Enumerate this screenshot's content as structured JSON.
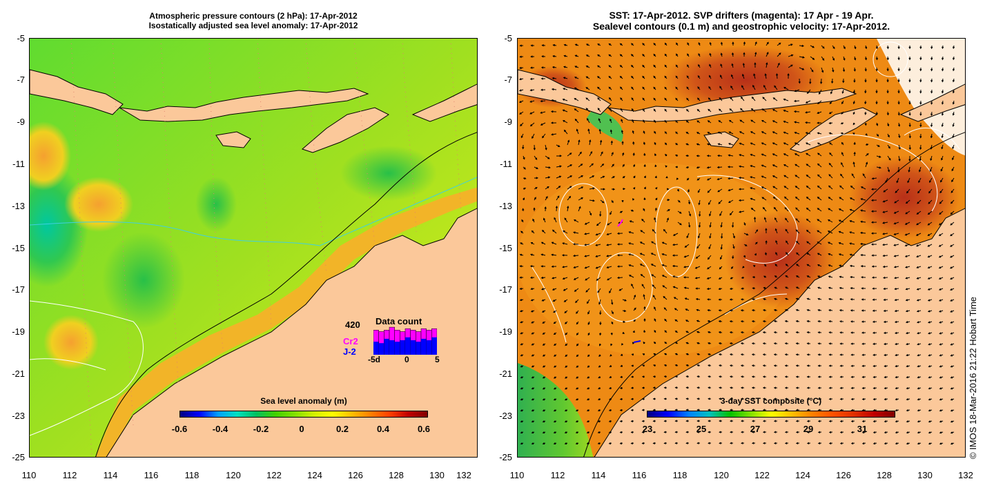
{
  "left_panel": {
    "title_line1": "Atmospheric pressure contours (2 hPa): 17-Apr-2012",
    "title_line2": "Isostatically adjusted sea level anomaly: 17-Apr-2012",
    "x_ticks": [
      "110",
      "112",
      "114",
      "116",
      "118",
      "120",
      "122",
      "124",
      "126",
      "128",
      "130",
      "132"
    ],
    "y_ticks": [
      "-5",
      "-7",
      "-9",
      "-11",
      "-13",
      "-15",
      "-17",
      "-19",
      "-21",
      "-23",
      "-25"
    ],
    "colorbar": {
      "label": "Sea level anomaly (m)",
      "ticks": [
        "-0.6",
        "-0.4",
        "-0.2",
        "0",
        "0.2",
        "0.4",
        "0.6"
      ],
      "colors": [
        "#000080",
        "#0000ff",
        "#00a0ff",
        "#00e0c0",
        "#00c060",
        "#40d000",
        "#80e000",
        "#d0f000",
        "#ffff00",
        "#ffc000",
        "#ff8000",
        "#ff4000",
        "#c00000",
        "#800000"
      ]
    },
    "data_count": {
      "title": "Data count",
      "value": "420",
      "series": [
        {
          "name": "Cr2",
          "color": "#ff00ff"
        },
        {
          "name": "J-2",
          "color": "#0000ff"
        }
      ],
      "axis_ticks": [
        "-5d",
        "0",
        "5"
      ],
      "bars_total": [
        0.85,
        0.8,
        0.85,
        0.95,
        0.85,
        0.8,
        0.9,
        0.85,
        0.8,
        0.9,
        0.85,
        0.9
      ],
      "bars_j2": [
        0.45,
        0.4,
        0.55,
        0.5,
        0.45,
        0.5,
        0.6,
        0.5,
        0.45,
        0.55,
        0.5,
        0.6
      ]
    }
  },
  "right_panel": {
    "title_line1": "SST: 17-Apr-2012. SVP drifters (magenta): 17 Apr - 19 Apr.",
    "title_line2": "Sealevel contours (0.1 m) and geostrophic velocity: 17-Apr-2012.",
    "x_ticks": [
      "110",
      "112",
      "114",
      "116",
      "118",
      "120",
      "122",
      "124",
      "126",
      "128",
      "130",
      "132"
    ],
    "y_ticks": [
      "-5",
      "-7",
      "-9",
      "-11",
      "-13",
      "-15",
      "-17",
      "-19",
      "-21",
      "-23",
      "-25"
    ],
    "colorbar": {
      "label": "3-day SST composite (°C)",
      "ticks": [
        "23",
        "25",
        "27",
        "29",
        "31"
      ],
      "colors": [
        "#000080",
        "#0000ff",
        "#0080ff",
        "#00c0c0",
        "#00c000",
        "#80e000",
        "#ffff00",
        "#ffc000",
        "#ff8000",
        "#ff5000",
        "#e03000",
        "#c00000",
        "#800000"
      ]
    }
  },
  "colors": {
    "land": "#fbc89a",
    "ocean_green": "#50dc28",
    "ocean_lime": "#a8e61e",
    "ocean_yellow": "#e6f01a",
    "ocean_orange": "#f59a2a",
    "sst_orange": "#ef8b12",
    "sst_red": "#c8401a",
    "contour_white": "#ffffff",
    "drifter_magenta": "#ff00ff"
  },
  "copyright": "© IMOS 18-Mar-2016 21:22 Hobart Time"
}
